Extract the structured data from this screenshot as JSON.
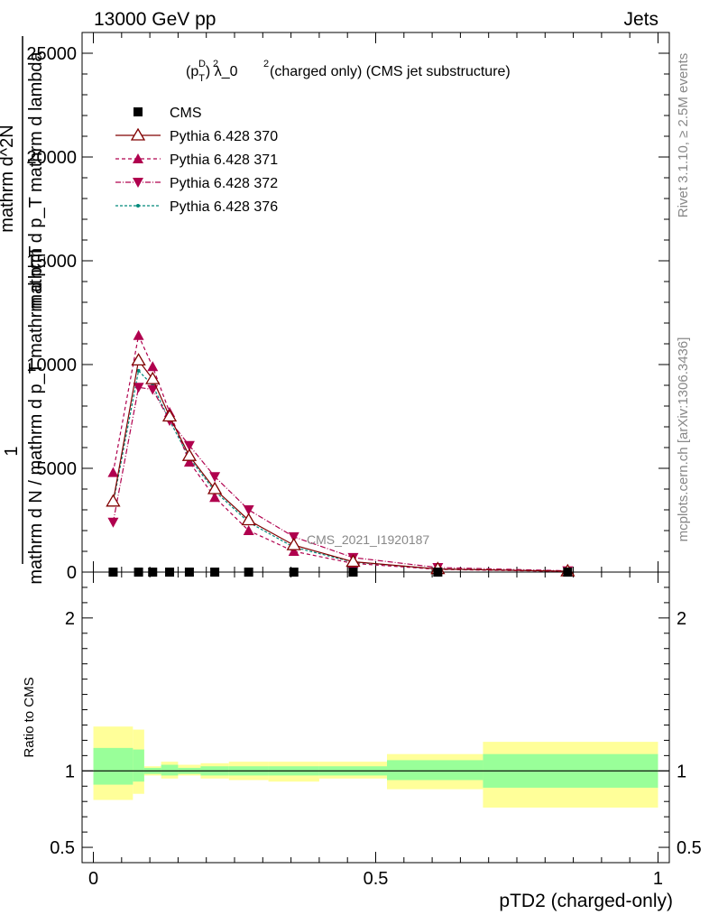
{
  "header": {
    "left": "13000 GeV pp",
    "right": "Jets"
  },
  "side": {
    "rivet": "Rivet 3.1.10, ≥ 2.5M events",
    "mcplots": "mcplots.cern.ch [arXiv:1306.3436]"
  },
  "watermark": "CMS_2021_I1920187",
  "chart_data": [
    {
      "type": "line",
      "title_base": "(p",
      "title_sub": "T",
      "title_sup": "D",
      "title_rest": ") λ_0",
      "title_sup2": "2",
      "title_sup1": "2",
      "title_tail": " (charged only) (CMS jet substructure)",
      "ylabel_lines": [
        "1",
        "mathrm d N / mathrm d p_T mathrm d p_T",
        "mathrm d^2N",
        "mathrm d p_T mathrm d lambda"
      ],
      "ylim": [
        0,
        26000
      ],
      "yticks": [
        0,
        5000,
        10000,
        15000,
        20000,
        25000
      ],
      "ytick_labels": [
        "0",
        "5000",
        "10000",
        "15000",
        "20000",
        "25000"
      ],
      "xlim": [
        -0.02,
        1.02
      ],
      "legend": [
        "CMS",
        "Pythia 6.428 370",
        "Pythia 6.428 371",
        "Pythia 6.428 372",
        "Pythia 6.428 376"
      ],
      "x": [
        0.035,
        0.08,
        0.105,
        0.135,
        0.17,
        0.215,
        0.275,
        0.355,
        0.46,
        0.61,
        0.84
      ],
      "series": [
        {
          "name": "CMS",
          "values": [
            0,
            0,
            0,
            0,
            0,
            0,
            0,
            0,
            0,
            0,
            0
          ],
          "color": "#000000",
          "marker": "square"
        },
        {
          "name": "Pythia 6.428 370",
          "values": [
            3400,
            10200,
            9300,
            7500,
            5600,
            4000,
            2500,
            1300,
            500,
            150,
            40
          ],
          "color": "#800000",
          "marker": "open-triangle",
          "dash": ""
        },
        {
          "name": "Pythia 6.428 371",
          "values": [
            4800,
            11400,
            9900,
            7700,
            5300,
            3600,
            2000,
            1000,
            420,
            130,
            30
          ],
          "color": "#b0004e",
          "marker": "triangle-up",
          "dash": "4,3"
        },
        {
          "name": "Pythia 6.428 372",
          "values": [
            2400,
            8900,
            8800,
            7300,
            6100,
            4600,
            3000,
            1700,
            700,
            220,
            60
          ],
          "color": "#b0004e",
          "marker": "triangle-down",
          "dash": "6,2,1,2"
        },
        {
          "name": "Pythia 6.428 376",
          "values": [
            3300,
            9700,
            9000,
            7300,
            5500,
            3900,
            2400,
            1200,
            480,
            150,
            40
          ],
          "color": "#00897b",
          "marker": "dot",
          "dash": "3,2"
        }
      ]
    },
    {
      "type": "area",
      "ylabel": "Ratio to CMS",
      "xlabel": "pTD2 (charged-only)",
      "ylim": [
        0.4,
        2.3
      ],
      "yticks": [
        0.5,
        1,
        2
      ],
      "ytick_labels": [
        "0.5",
        "1",
        "2"
      ],
      "xticks": [
        0,
        0.5,
        1
      ],
      "xtick_labels": [
        "0",
        "0.5",
        "1"
      ],
      "bins": [
        {
          "x0": 0.0,
          "x1": 0.07,
          "green": [
            0.91,
            1.15
          ],
          "yellow": [
            0.81,
            1.29
          ]
        },
        {
          "x0": 0.07,
          "x1": 0.09,
          "green": [
            0.93,
            1.14
          ],
          "yellow": [
            0.85,
            1.27
          ]
        },
        {
          "x0": 0.09,
          "x1": 0.12,
          "green": [
            0.98,
            1.02
          ],
          "yellow": [
            0.97,
            1.03
          ]
        },
        {
          "x0": 0.12,
          "x1": 0.15,
          "green": [
            0.97,
            1.04
          ],
          "yellow": [
            0.95,
            1.06
          ]
        },
        {
          "x0": 0.15,
          "x1": 0.19,
          "green": [
            0.98,
            1.02
          ],
          "yellow": [
            0.97,
            1.04
          ]
        },
        {
          "x0": 0.19,
          "x1": 0.24,
          "green": [
            0.97,
            1.03
          ],
          "yellow": [
            0.95,
            1.05
          ]
        },
        {
          "x0": 0.24,
          "x1": 0.31,
          "green": [
            0.97,
            1.03
          ],
          "yellow": [
            0.94,
            1.06
          ]
        },
        {
          "x0": 0.31,
          "x1": 0.4,
          "green": [
            0.97,
            1.03
          ],
          "yellow": [
            0.93,
            1.06
          ]
        },
        {
          "x0": 0.4,
          "x1": 0.52,
          "green": [
            0.97,
            1.03
          ],
          "yellow": [
            0.95,
            1.06
          ]
        },
        {
          "x0": 0.52,
          "x1": 0.69,
          "green": [
            0.94,
            1.07
          ],
          "yellow": [
            0.88,
            1.11
          ]
        },
        {
          "x0": 0.69,
          "x1": 1.0,
          "green": [
            0.89,
            1.11
          ],
          "yellow": [
            0.76,
            1.19
          ]
        }
      ]
    }
  ]
}
